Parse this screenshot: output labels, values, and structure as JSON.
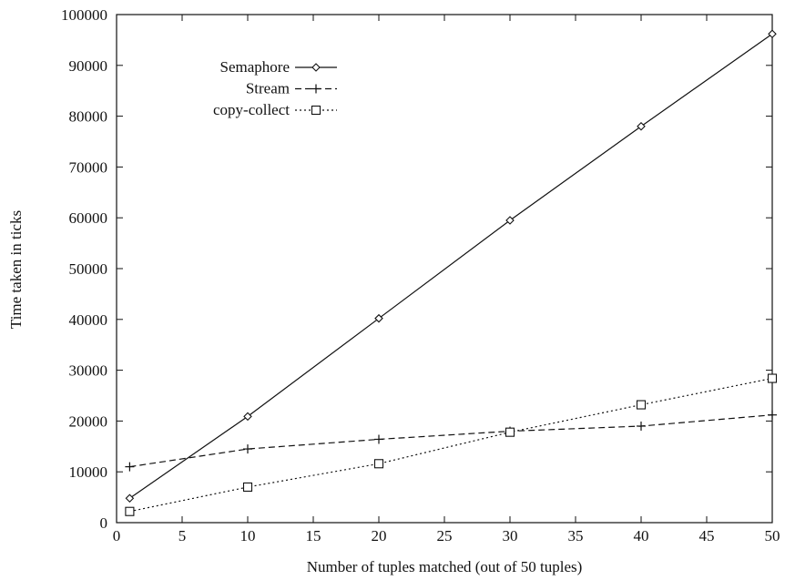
{
  "chart_data": {
    "type": "line",
    "title": "",
    "xlabel": "Number of tuples matched (out of 50 tuples)",
    "ylabel": "Time taken in ticks",
    "xlim": [
      0,
      50
    ],
    "ylim": [
      0,
      100000
    ],
    "xticks": [
      0,
      5,
      10,
      15,
      20,
      25,
      30,
      35,
      40,
      45,
      50
    ],
    "yticks": [
      0,
      10000,
      20000,
      30000,
      40000,
      50000,
      60000,
      70000,
      80000,
      90000,
      100000
    ],
    "x": [
      1,
      10,
      20,
      30,
      40,
      50
    ],
    "legend_position": "top-left",
    "grid": false,
    "series": [
      {
        "name": "Semaphore",
        "marker": "diamond",
        "line": "solid",
        "values": [
          4800,
          20900,
          40200,
          59500,
          78000,
          96200
        ]
      },
      {
        "name": "Stream",
        "marker": "plus",
        "line": "dashed",
        "values": [
          11000,
          14500,
          16400,
          18000,
          19000,
          21200
        ]
      },
      {
        "name": "copy-collect",
        "marker": "square",
        "line": "dotted",
        "values": [
          2200,
          7000,
          11600,
          17800,
          23200,
          28400
        ]
      }
    ]
  }
}
